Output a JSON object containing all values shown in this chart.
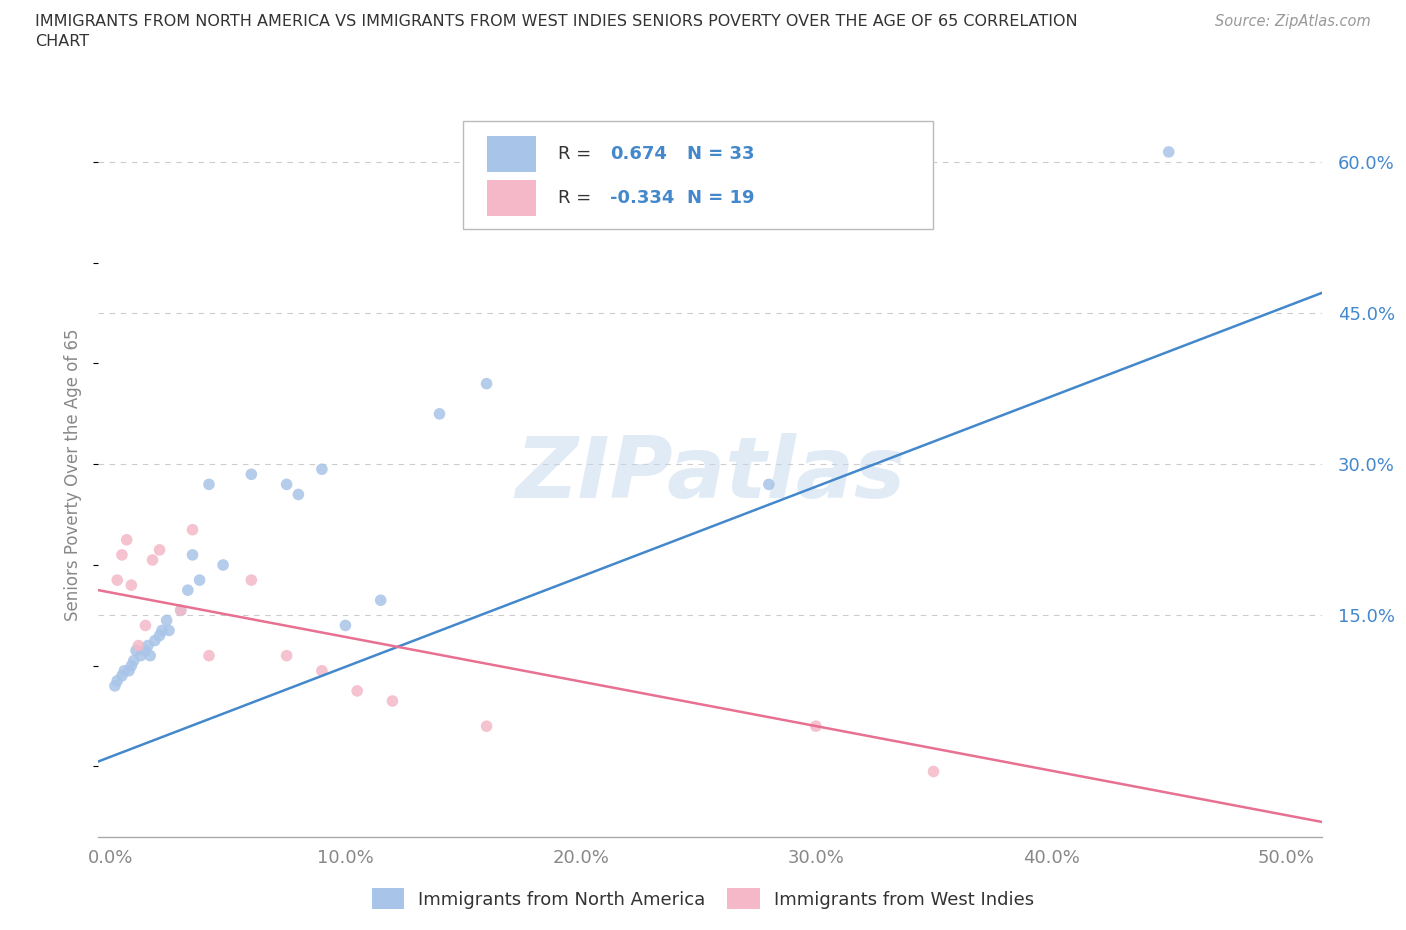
{
  "title_line1": "IMMIGRANTS FROM NORTH AMERICA VS IMMIGRANTS FROM WEST INDIES SENIORS POVERTY OVER THE AGE OF 65 CORRELATION",
  "title_line2": "CHART",
  "source": "Source: ZipAtlas.com",
  "ylabel": "Seniors Poverty Over the Age of 65",
  "watermark": "ZIPatlas",
  "blue_R": "0.674",
  "blue_N": "33",
  "pink_R": "-0.334",
  "pink_N": "19",
  "blue_fill_color": "#a8c4e8",
  "pink_fill_color": "#f4b8c8",
  "blue_line_color": "#4488cc",
  "pink_line_color": "#e87090",
  "label_color": "#4488cc",
  "text_color": "#333333",
  "tick_color": "#888888",
  "grid_color": "#cccccc",
  "bg_color": "#ffffff",
  "xlim_min": -0.005,
  "xlim_max": 0.515,
  "ylim_min": -0.07,
  "ylim_max": 0.65,
  "xticks": [
    0.0,
    0.1,
    0.2,
    0.3,
    0.4,
    0.5
  ],
  "xtick_labels": [
    "0.0%",
    "10.0%",
    "20.0%",
    "30.0%",
    "40.0%",
    "50.0%"
  ],
  "yticks_right": [
    0.15,
    0.3,
    0.45,
    0.6
  ],
  "ytick_labels_right": [
    "15.0%",
    "30.0%",
    "45.0%",
    "60.0%"
  ],
  "blue_scatter_x": [
    0.002,
    0.003,
    0.005,
    0.006,
    0.008,
    0.009,
    0.01,
    0.011,
    0.013,
    0.015,
    0.016,
    0.017,
    0.019,
    0.021,
    0.022,
    0.024,
    0.025,
    0.03,
    0.033,
    0.035,
    0.038,
    0.042,
    0.048,
    0.06,
    0.075,
    0.08,
    0.09,
    0.1,
    0.115,
    0.14,
    0.16,
    0.28,
    0.45
  ],
  "blue_scatter_y": [
    0.08,
    0.085,
    0.09,
    0.095,
    0.095,
    0.1,
    0.105,
    0.115,
    0.11,
    0.115,
    0.12,
    0.11,
    0.125,
    0.13,
    0.135,
    0.145,
    0.135,
    0.155,
    0.175,
    0.21,
    0.185,
    0.28,
    0.2,
    0.29,
    0.28,
    0.27,
    0.295,
    0.14,
    0.165,
    0.35,
    0.38,
    0.28,
    0.61
  ],
  "pink_scatter_x": [
    0.003,
    0.005,
    0.007,
    0.009,
    0.012,
    0.015,
    0.018,
    0.021,
    0.03,
    0.035,
    0.042,
    0.06,
    0.075,
    0.09,
    0.105,
    0.12,
    0.16,
    0.3,
    0.35
  ],
  "pink_scatter_y": [
    0.185,
    0.21,
    0.225,
    0.18,
    0.12,
    0.14,
    0.205,
    0.215,
    0.155,
    0.235,
    0.11,
    0.185,
    0.11,
    0.095,
    0.075,
    0.065,
    0.04,
    0.04,
    -0.005
  ],
  "blue_line_x0": -0.005,
  "blue_line_x1": 0.515,
  "blue_line_y0": 0.005,
  "blue_line_y1": 0.47,
  "pink_line_x0": -0.005,
  "pink_line_x1": 0.515,
  "pink_line_y0": 0.175,
  "pink_line_y1": -0.055,
  "legend_label_blue": "Immigrants from North America",
  "legend_label_pink": "Immigrants from West Indies",
  "marker_size": 70
}
